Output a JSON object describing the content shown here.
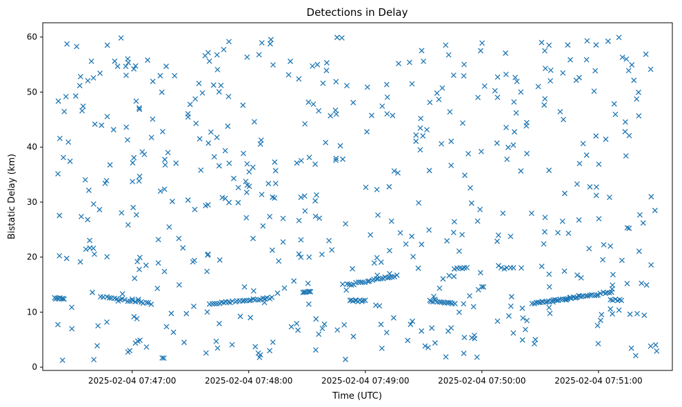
{
  "chart_data": {
    "type": "scatter",
    "title": "Detections in Delay",
    "xlabel": "Time (UTC)",
    "ylabel": "Bistatic Delay (km)",
    "x_start": "2025-02-04 07:46:20",
    "xlim_seconds": [
      -6,
      318
    ],
    "ylim": [
      -0.6,
      62.6
    ],
    "x_ticks": [
      {
        "seconds": 40,
        "label": "2025-02-04 07:47:00"
      },
      {
        "seconds": 100,
        "label": "2025-02-04 07:48:00"
      },
      {
        "seconds": 160,
        "label": "2025-02-04 07:49:00"
      },
      {
        "seconds": 220,
        "label": "2025-02-04 07:50:00"
      },
      {
        "seconds": 280,
        "label": "2025-02-04 07:51:00"
      }
    ],
    "y_ticks": [
      0,
      10,
      20,
      30,
      40,
      50,
      60
    ],
    "marker": "x",
    "color": "#1f77b4",
    "grid": false,
    "seed": 20250204,
    "n_random": 540
  }
}
